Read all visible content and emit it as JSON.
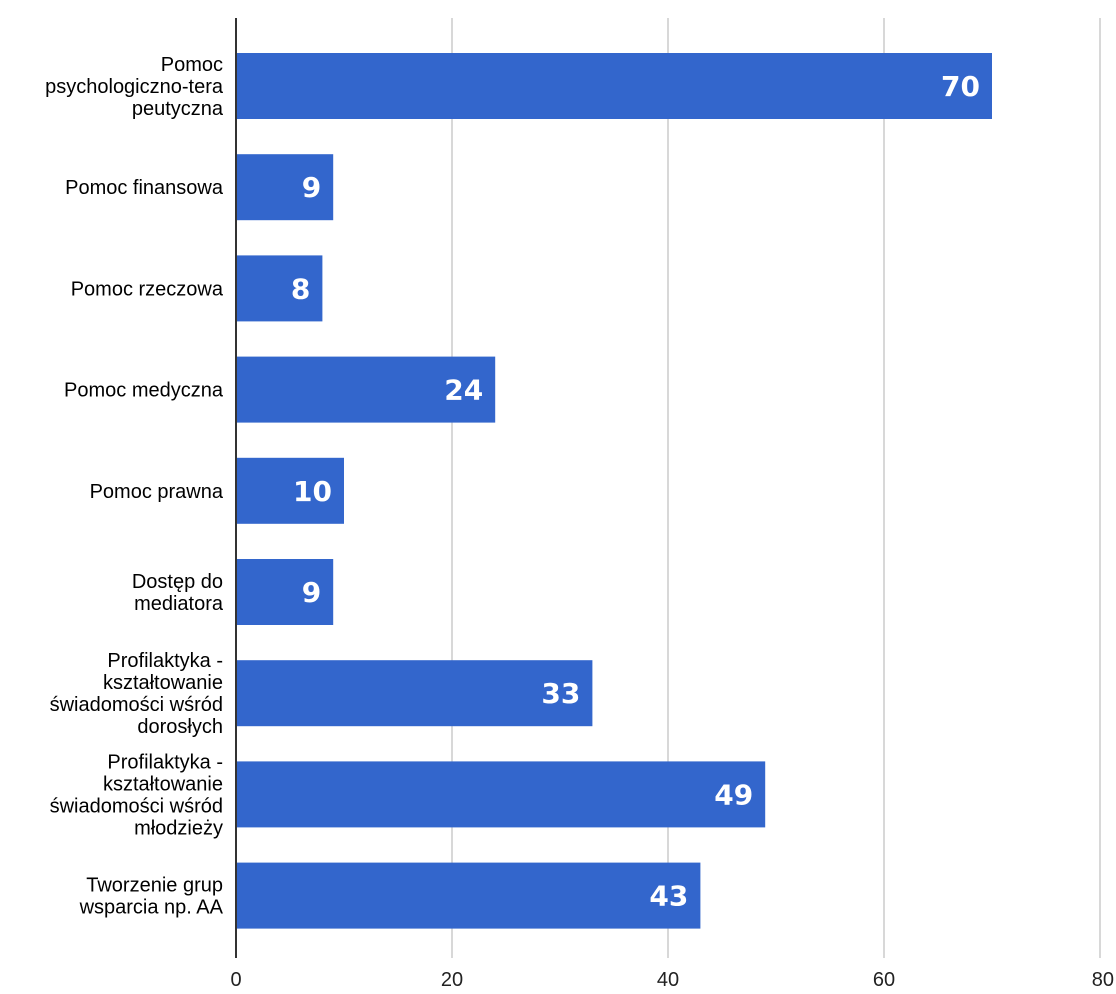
{
  "chart_data": {
    "type": "bar",
    "orientation": "horizontal",
    "categories": [
      "Pomoc psychologiczno-terapeutyczna",
      "Pomoc finansowa",
      "Pomoc rzeczowa",
      "Pomoc medyczna",
      "Pomoc prawna",
      "Dostęp do mediatora",
      "Profilaktyka - kształtowanie świadomości wśród dorosłych",
      "Profilaktyka - kształtowanie świadomości wśród młodzieży",
      "Tworzenie grup wsparcia np. AA"
    ],
    "category_label_lines": [
      [
        "Pomoc",
        "psychologiczno-tera",
        "peutyczna"
      ],
      [
        "Pomoc finansowa"
      ],
      [
        "Pomoc rzeczowa"
      ],
      [
        "Pomoc medyczna"
      ],
      [
        "Pomoc prawna"
      ],
      [
        "Dostęp do",
        "mediatora"
      ],
      [
        "Profilaktyka -",
        "kształtowanie",
        "świadomości wśród",
        "dorosłych"
      ],
      [
        "Profilaktyka -",
        "kształtowanie",
        "świadomości wśród",
        "młodzieży"
      ],
      [
        "Tworzenie grup",
        "wsparcia np. AA"
      ]
    ],
    "values": [
      70,
      9,
      8,
      24,
      10,
      9,
      33,
      49,
      43
    ],
    "data_labels": [
      "70",
      "9",
      "8",
      "24",
      "10",
      "9",
      "33",
      "49",
      "43"
    ],
    "xlim": [
      0,
      80
    ],
    "x_ticks": [
      0,
      20,
      40,
      60,
      80
    ],
    "x_tick_labels": [
      "0",
      "20",
      "40",
      "60",
      "80"
    ],
    "grid": "vertical",
    "legend": "none",
    "bar_color": "#3366cc"
  }
}
